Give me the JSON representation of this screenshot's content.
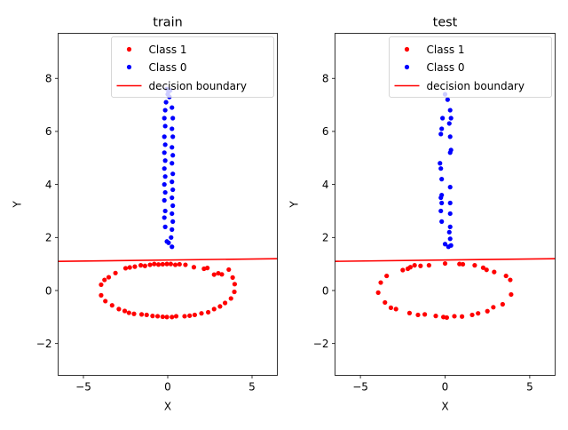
{
  "chart_data": [
    {
      "type": "scatter",
      "title": "train",
      "xlabel": "X",
      "ylabel": "Y",
      "xlim": [
        -6.5,
        6.5
      ],
      "ylim": [
        -3.2,
        9.7
      ],
      "xticks": [
        -5,
        0,
        5
      ],
      "yticks": [
        -2,
        0,
        2,
        4,
        6,
        8
      ],
      "grid": false,
      "legend": "top-right",
      "legend_entries": [
        "Class 1",
        "Class 0",
        "decision boundary"
      ],
      "series": [
        {
          "name": "Class 1",
          "color": "#ff0000",
          "marker": "circle",
          "points": [
            [
              3.97,
              0.24
            ],
            [
              3.85,
              0.49
            ],
            [
              3.62,
              0.79
            ],
            [
              3.21,
              0.61
            ],
            [
              3.0,
              0.65
            ],
            [
              2.75,
              0.6
            ],
            [
              2.35,
              0.85
            ],
            [
              2.15,
              0.82
            ],
            [
              1.55,
              0.88
            ],
            [
              1.05,
              0.97
            ],
            [
              0.7,
              0.99
            ],
            [
              0.45,
              0.97
            ],
            [
              0.18,
              1.0
            ],
            [
              -0.05,
              1.0
            ],
            [
              -0.3,
              0.99
            ],
            [
              -0.55,
              0.98
            ],
            [
              -0.8,
              1.0
            ],
            [
              -1.05,
              0.97
            ],
            [
              -1.35,
              0.93
            ],
            [
              -1.6,
              0.95
            ],
            [
              -1.95,
              0.9
            ],
            [
              -2.25,
              0.87
            ],
            [
              -2.5,
              0.84
            ],
            [
              -3.1,
              0.66
            ],
            [
              -3.5,
              0.5
            ],
            [
              -3.75,
              0.4
            ],
            [
              -3.95,
              0.22
            ],
            [
              -3.95,
              -0.18
            ],
            [
              -3.7,
              -0.4
            ],
            [
              -3.3,
              -0.56
            ],
            [
              -2.9,
              -0.7
            ],
            [
              -2.55,
              -0.77
            ],
            [
              -2.3,
              -0.84
            ],
            [
              -2.0,
              -0.88
            ],
            [
              -1.55,
              -0.9
            ],
            [
              -1.25,
              -0.92
            ],
            [
              -0.9,
              -0.96
            ],
            [
              -0.6,
              -0.97
            ],
            [
              -0.3,
              -0.99
            ],
            [
              -0.05,
              -1.0
            ],
            [
              0.25,
              -1.0
            ],
            [
              0.5,
              -0.97
            ],
            [
              1.0,
              -0.97
            ],
            [
              1.3,
              -0.95
            ],
            [
              1.6,
              -0.92
            ],
            [
              2.0,
              -0.86
            ],
            [
              2.4,
              -0.82
            ],
            [
              2.75,
              -0.7
            ],
            [
              3.1,
              -0.6
            ],
            [
              3.4,
              -0.47
            ],
            [
              3.75,
              -0.3
            ],
            [
              3.95,
              -0.05
            ]
          ]
        },
        {
          "name": "Class 0",
          "color": "#0000ff",
          "marker": "circle",
          "points": [
            [
              -0.05,
              7.6
            ],
            [
              0.0,
              7.4
            ],
            [
              0.05,
              7.5
            ],
            [
              0.1,
              7.3
            ],
            [
              0.15,
              7.55
            ],
            [
              -0.1,
              7.1
            ],
            [
              -0.15,
              6.8
            ],
            [
              -0.2,
              6.5
            ],
            [
              -0.15,
              6.2
            ],
            [
              -0.2,
              5.8
            ],
            [
              -0.15,
              5.5
            ],
            [
              -0.2,
              5.2
            ],
            [
              -0.15,
              4.9
            ],
            [
              -0.2,
              4.6
            ],
            [
              -0.15,
              4.3
            ],
            [
              -0.2,
              4.0
            ],
            [
              -0.15,
              3.7
            ],
            [
              -0.2,
              3.4
            ],
            [
              -0.15,
              3.0
            ],
            [
              -0.2,
              2.75
            ],
            [
              -0.15,
              2.4
            ],
            [
              -0.05,
              1.85
            ],
            [
              0.05,
              1.8
            ],
            [
              0.25,
              1.65
            ],
            [
              0.2,
              2.0
            ],
            [
              0.25,
              2.3
            ],
            [
              0.3,
              2.6
            ],
            [
              0.25,
              2.9
            ],
            [
              0.3,
              3.2
            ],
            [
              0.25,
              3.5
            ],
            [
              0.3,
              3.8
            ],
            [
              0.25,
              4.1
            ],
            [
              0.3,
              4.4
            ],
            [
              0.25,
              4.8
            ],
            [
              0.3,
              5.1
            ],
            [
              0.25,
              5.4
            ],
            [
              0.3,
              5.8
            ],
            [
              0.25,
              6.1
            ],
            [
              0.3,
              6.5
            ],
            [
              0.25,
              6.9
            ]
          ]
        }
      ],
      "boundary": {
        "name": "decision boundary",
        "color": "#ff0000",
        "x": [
          -6.5,
          6.5
        ],
        "y": [
          1.1,
          1.2
        ]
      }
    },
    {
      "type": "scatter",
      "title": "test",
      "xlabel": "X",
      "ylabel": "Y",
      "xlim": [
        -6.5,
        6.5
      ],
      "ylim": [
        -3.2,
        9.7
      ],
      "xticks": [
        -5,
        0,
        5
      ],
      "yticks": [
        -2,
        0,
        2,
        4,
        6,
        8
      ],
      "grid": false,
      "legend": "top-right",
      "legend_entries": [
        "Class 1",
        "Class 0",
        "decision boundary"
      ],
      "series": [
        {
          "name": "Class 1",
          "color": "#ff0000",
          "marker": "circle",
          "points": [
            [
              3.85,
              0.4
            ],
            [
              3.6,
              0.55
            ],
            [
              2.9,
              0.7
            ],
            [
              2.45,
              0.78
            ],
            [
              2.25,
              0.86
            ],
            [
              1.75,
              0.95
            ],
            [
              1.05,
              0.99
            ],
            [
              0.85,
              1.0
            ],
            [
              0.0,
              1.02
            ],
            [
              -0.95,
              0.95
            ],
            [
              -1.45,
              0.93
            ],
            [
              -1.8,
              0.95
            ],
            [
              -2.05,
              0.88
            ],
            [
              -2.2,
              0.82
            ],
            [
              -2.5,
              0.77
            ],
            [
              -3.45,
              0.55
            ],
            [
              -3.8,
              0.3
            ],
            [
              -3.95,
              -0.08
            ],
            [
              -3.55,
              -0.45
            ],
            [
              -3.2,
              -0.65
            ],
            [
              -2.9,
              -0.7
            ],
            [
              -2.1,
              -0.85
            ],
            [
              -1.6,
              -0.92
            ],
            [
              -1.2,
              -0.9
            ],
            [
              -0.55,
              -0.96
            ],
            [
              -0.1,
              -1.0
            ],
            [
              0.1,
              -1.02
            ],
            [
              0.55,
              -0.97
            ],
            [
              1.0,
              -0.98
            ],
            [
              1.6,
              -0.92
            ],
            [
              1.95,
              -0.86
            ],
            [
              2.5,
              -0.78
            ],
            [
              2.85,
              -0.63
            ],
            [
              3.4,
              -0.52
            ],
            [
              3.9,
              -0.15
            ]
          ]
        },
        {
          "name": "Class 0",
          "color": "#0000ff",
          "marker": "circle",
          "points": [
            [
              0.0,
              7.4
            ],
            [
              0.15,
              7.2
            ],
            [
              0.3,
              6.8
            ],
            [
              0.35,
              6.5
            ],
            [
              0.25,
              6.3
            ],
            [
              -0.15,
              6.5
            ],
            [
              -0.2,
              6.1
            ],
            [
              -0.25,
              5.9
            ],
            [
              0.3,
              5.8
            ],
            [
              0.35,
              5.3
            ],
            [
              0.3,
              5.2
            ],
            [
              -0.3,
              4.8
            ],
            [
              -0.25,
              4.6
            ],
            [
              -0.2,
              4.2
            ],
            [
              0.3,
              3.9
            ],
            [
              -0.2,
              3.6
            ],
            [
              -0.25,
              3.5
            ],
            [
              -0.2,
              3.3
            ],
            [
              0.3,
              3.3
            ],
            [
              -0.25,
              3.0
            ],
            [
              0.3,
              2.9
            ],
            [
              -0.2,
              2.6
            ],
            [
              0.3,
              2.4
            ],
            [
              0.25,
              2.2
            ],
            [
              0.3,
              1.95
            ],
            [
              0.0,
              1.75
            ],
            [
              0.2,
              1.65
            ],
            [
              0.35,
              1.7
            ]
          ]
        }
      ],
      "boundary": {
        "name": "decision boundary",
        "color": "#ff0000",
        "x": [
          -6.5,
          6.5
        ],
        "y": [
          1.1,
          1.2
        ]
      }
    }
  ]
}
